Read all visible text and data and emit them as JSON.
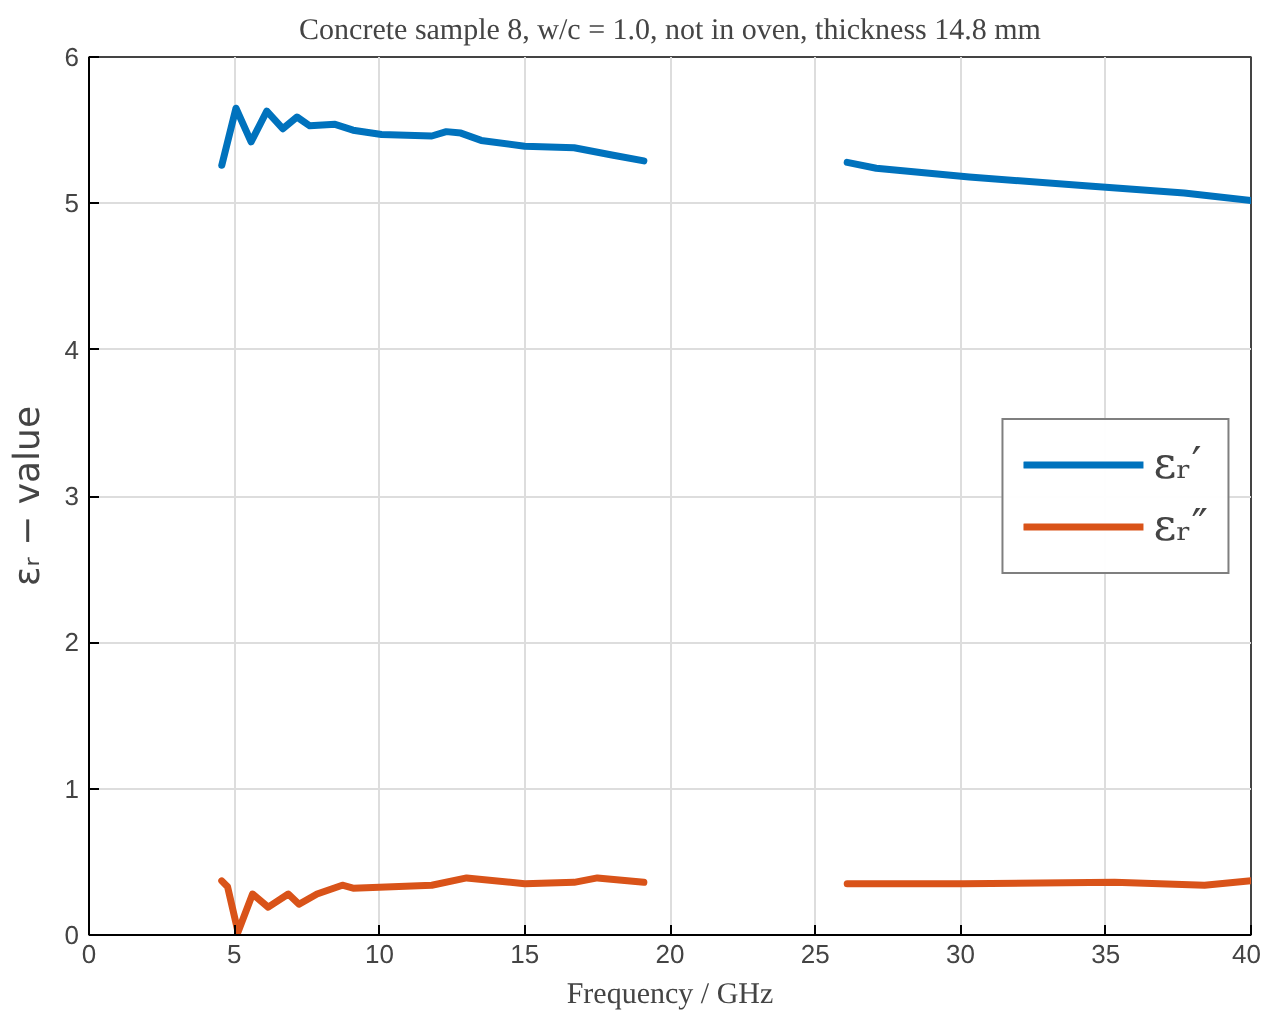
{
  "chart_data": {
    "type": "line",
    "title": "Concrete sample 8, w/c = 1.0, not in oven, thickness 14.8 mm",
    "xlabel": "Frequency / GHz",
    "ylabel": "εᵣ − value",
    "xlim": [
      0,
      40
    ],
    "ylim": [
      0,
      6
    ],
    "xticks": [
      0,
      5,
      10,
      15,
      20,
      25,
      30,
      35,
      40
    ],
    "yticks": [
      0,
      1,
      2,
      3,
      4,
      5,
      6
    ],
    "grid": true,
    "legend": "right",
    "line_style": "solid",
    "series": [
      {
        "name": "εᵣ′",
        "color": "#0072bd",
        "x": [
          4.57,
          5.06,
          5.58,
          6.12,
          6.67,
          7.16,
          7.6,
          8.47,
          9.09,
          10.07,
          11.8,
          12.3,
          12.8,
          13.5,
          15.0,
          16.7,
          18.0,
          19.1,
          22.5,
          26.1,
          27.1,
          30.3,
          34.3,
          37.7,
          40
        ],
        "values": [
          5.26,
          5.65,
          5.42,
          5.63,
          5.51,
          5.59,
          5.53,
          5.54,
          5.5,
          5.47,
          5.46,
          5.49,
          5.48,
          5.43,
          5.39,
          5.38,
          5.33,
          5.29,
          null,
          5.28,
          5.24,
          5.18,
          5.12,
          5.07,
          5.02
        ]
      },
      {
        "name": "εᵣ″",
        "color": "#d95319",
        "x": [
          4.57,
          4.77,
          5.13,
          5.63,
          6.17,
          6.86,
          7.23,
          7.85,
          8.72,
          9.09,
          11.8,
          13.0,
          15.0,
          16.7,
          17.5,
          19.1,
          22.5,
          26.1,
          30.1,
          35.3,
          38.4,
          40
        ],
        "values": [
          0.37,
          0.33,
          0.02,
          0.28,
          0.19,
          0.28,
          0.21,
          0.28,
          0.34,
          0.32,
          0.34,
          0.39,
          0.35,
          0.36,
          0.39,
          0.36,
          null,
          0.35,
          0.35,
          0.36,
          0.34,
          0.37
        ]
      }
    ]
  }
}
